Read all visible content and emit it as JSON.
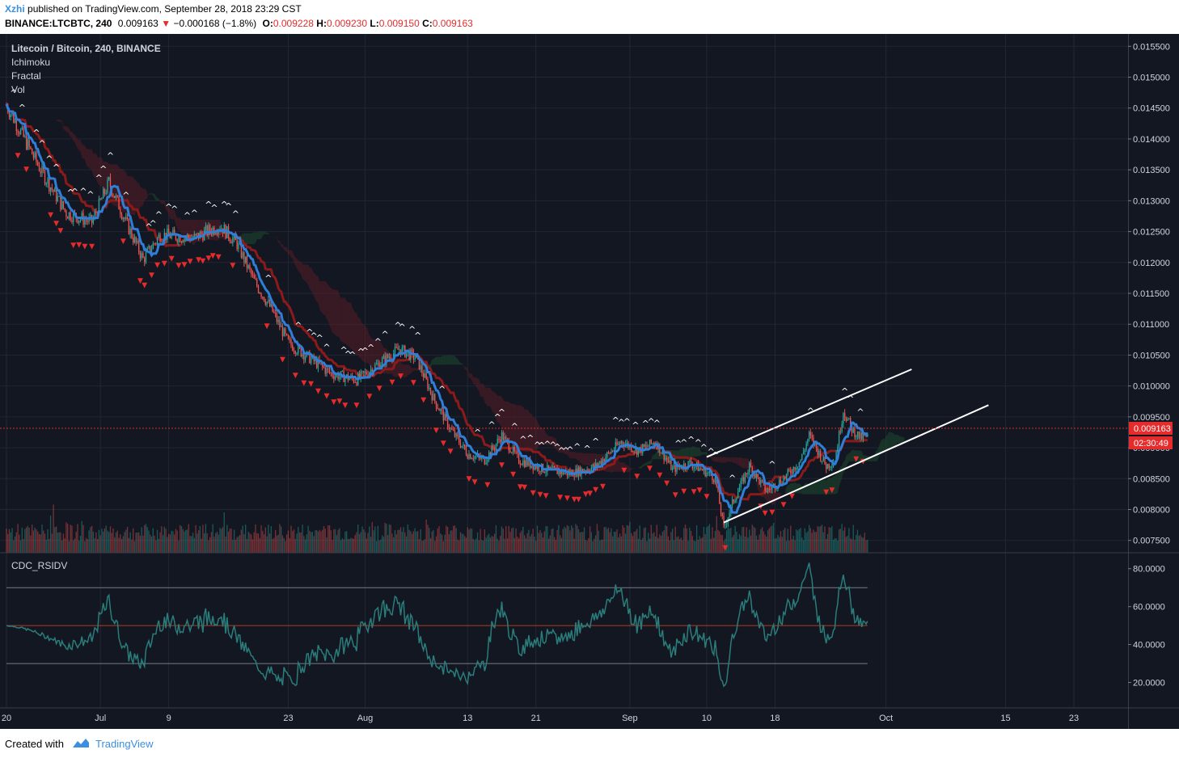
{
  "header": {
    "author": "Xzhi",
    "published": "published on TradingView.com, September 28, 2018 23:29 CST",
    "symbol": "BINANCE:LTCBTC, 240",
    "last": "0.009163",
    "change": "−0.000168 (−1.8%)",
    "open_label": "O:",
    "open": "0.009228",
    "high_label": "H:",
    "high": "0.009230",
    "low_label": "L:",
    "low": "0.009150",
    "close_label": "C:",
    "close": "0.009163"
  },
  "legend": {
    "title": "Litecoin / Bitcoin, 240, BINANCE",
    "indicators": [
      "Ichimoku",
      "Fractal",
      "Vol"
    ]
  },
  "price_scale": {
    "labels": [
      "0.015500",
      "0.015000",
      "0.014500",
      "0.014000",
      "0.013500",
      "0.013000",
      "0.012500",
      "0.012000",
      "0.011500",
      "0.011000",
      "0.010500",
      "0.010000",
      "0.009500",
      "0.009000",
      "0.008500",
      "0.008000",
      "0.007500"
    ],
    "current_price_tag": "0.009163",
    "countdown_tag": "02:30:49"
  },
  "rsi_panel": {
    "title": "CDC_RSIDV",
    "labels": [
      "80.0000",
      "60.0000",
      "40.0000",
      "20.0000"
    ]
  },
  "time_axis": {
    "labels": [
      "20",
      "Jul",
      "9",
      "23",
      "Aug",
      "13",
      "21",
      "Sep",
      "10",
      "18",
      "Oct",
      "15",
      "23"
    ]
  },
  "footer": {
    "created_with": "Created with",
    "brand": "TradingView"
  },
  "colors": {
    "background": "#131722",
    "up": "#26a69a",
    "down": "#ef5350",
    "conversion_line": "#2f7ed8",
    "base_line": "#8b1a1a",
    "cloud_bearish": "#5a1e26",
    "rsi_line": "#2a7d7b",
    "accent_blue": "#3a8fe0",
    "current_price": "#e52b2b"
  },
  "chart_data": {
    "type": "candlestick",
    "symbol": "LTCBTC",
    "interval": "240",
    "exchange": "BINANCE",
    "price_range": [
      0.0073,
      0.0157
    ],
    "current_price": 0.009163,
    "date_ticks": [
      "2018-06-20",
      "2018-07-01",
      "2018-07-09",
      "2018-07-23",
      "2018-08-01",
      "2018-08-13",
      "2018-08-21",
      "2018-09-01",
      "2018-09-10",
      "2018-09-18",
      "2018-10-01",
      "2018-10-15",
      "2018-10-23"
    ],
    "date_range": [
      "2018-06-20",
      "2018-10-30"
    ],
    "price_path": [
      {
        "date": "2018-06-20",
        "price": 0.01455
      },
      {
        "date": "2018-06-24",
        "price": 0.0135
      },
      {
        "date": "2018-06-27",
        "price": 0.0128
      },
      {
        "date": "2018-06-30",
        "price": 0.01265
      },
      {
        "date": "2018-07-02",
        "price": 0.0133
      },
      {
        "date": "2018-07-04",
        "price": 0.01265
      },
      {
        "date": "2018-07-06",
        "price": 0.01205
      },
      {
        "date": "2018-07-08",
        "price": 0.01245
      },
      {
        "date": "2018-07-12",
        "price": 0.0124
      },
      {
        "date": "2018-07-15",
        "price": 0.0126
      },
      {
        "date": "2018-07-17",
        "price": 0.0123
      },
      {
        "date": "2018-07-19",
        "price": 0.0117
      },
      {
        "date": "2018-07-21",
        "price": 0.01125
      },
      {
        "date": "2018-07-23",
        "price": 0.0107
      },
      {
        "date": "2018-07-25",
        "price": 0.0105
      },
      {
        "date": "2018-07-28",
        "price": 0.0102
      },
      {
        "date": "2018-07-31",
        "price": 0.0101
      },
      {
        "date": "2018-08-03",
        "price": 0.0104
      },
      {
        "date": "2018-08-05",
        "price": 0.0106
      },
      {
        "date": "2018-08-07",
        "price": 0.01045
      },
      {
        "date": "2018-08-09",
        "price": 0.0098
      },
      {
        "date": "2018-08-11",
        "price": 0.0093
      },
      {
        "date": "2018-08-13",
        "price": 0.0089
      },
      {
        "date": "2018-08-15",
        "price": 0.0088
      },
      {
        "date": "2018-08-17",
        "price": 0.0092
      },
      {
        "date": "2018-08-19",
        "price": 0.0088
      },
      {
        "date": "2018-08-22",
        "price": 0.00865
      },
      {
        "date": "2018-08-25",
        "price": 0.00858
      },
      {
        "date": "2018-08-28",
        "price": 0.0087
      },
      {
        "date": "2018-08-31",
        "price": 0.0091
      },
      {
        "date": "2018-09-02",
        "price": 0.00895
      },
      {
        "date": "2018-09-04",
        "price": 0.0091
      },
      {
        "date": "2018-09-06",
        "price": 0.00865
      },
      {
        "date": "2018-09-08",
        "price": 0.00875
      },
      {
        "date": "2018-09-10",
        "price": 0.0086
      },
      {
        "date": "2018-09-11",
        "price": 0.0085
      },
      {
        "date": "2018-09-12",
        "price": 0.0077
      },
      {
        "date": "2018-09-13",
        "price": 0.0081
      },
      {
        "date": "2018-09-15",
        "price": 0.0087
      },
      {
        "date": "2018-09-17",
        "price": 0.0083
      },
      {
        "date": "2018-09-19",
        "price": 0.0085
      },
      {
        "date": "2018-09-21",
        "price": 0.0088
      },
      {
        "date": "2018-09-22",
        "price": 0.0092
      },
      {
        "date": "2018-09-24",
        "price": 0.0087
      },
      {
        "date": "2018-09-25",
        "price": 0.0088
      },
      {
        "date": "2018-09-26",
        "price": 0.0096
      },
      {
        "date": "2018-09-27",
        "price": 0.0093
      },
      {
        "date": "2018-09-28",
        "price": 0.009163
      }
    ],
    "trend_channel": [
      {
        "name": "upper",
        "from": {
          "date": "2018-09-10",
          "price": 0.00885
        },
        "to": {
          "date": "2018-10-04",
          "price": 0.01027
        }
      },
      {
        "name": "lower",
        "from": {
          "date": "2018-09-12",
          "price": 0.00779
        },
        "to": {
          "date": "2018-10-13",
          "price": 0.00969
        }
      }
    ],
    "rsi_range": [
      10,
      85
    ],
    "rsi_levels": [
      70,
      50,
      30
    ]
  }
}
